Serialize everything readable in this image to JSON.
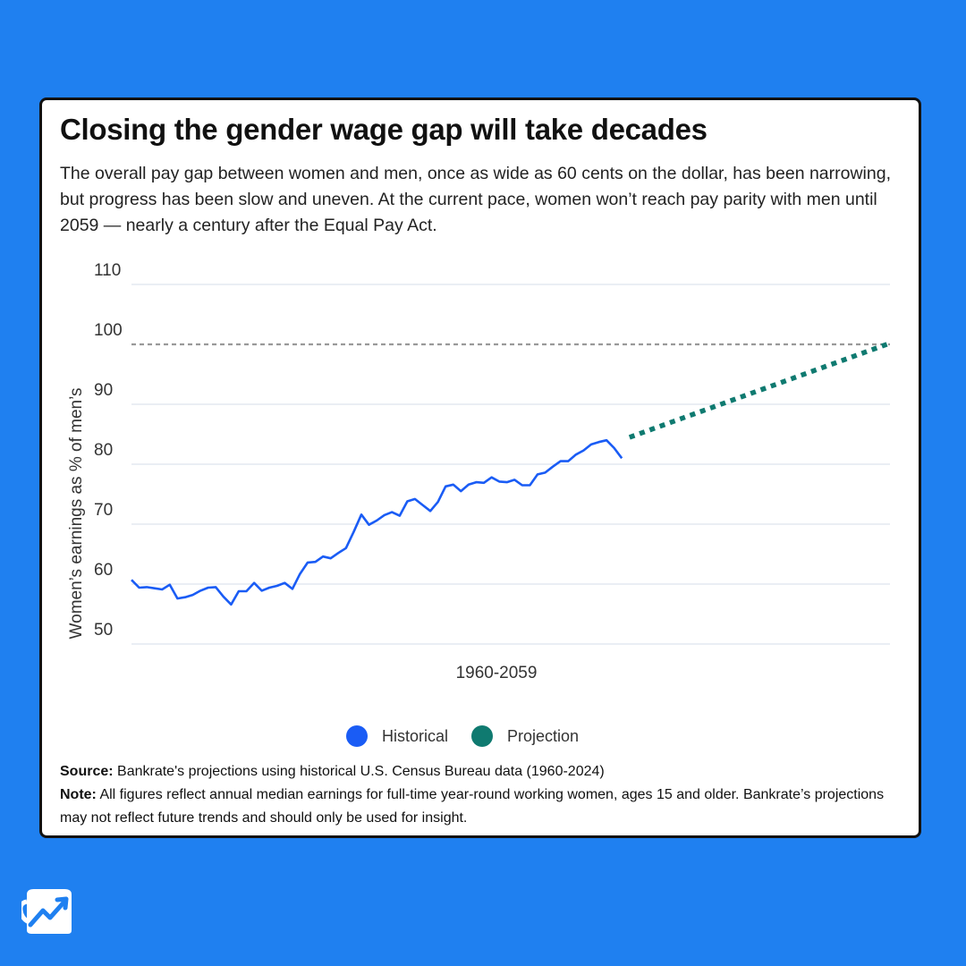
{
  "header": {
    "title": "Closing the gender wage gap will take decades",
    "subtitle": "The overall pay gap between women and men, once as wide as 60 cents on the dollar, has been narrowing, but progress has been slow and uneven. At the current pace, women won’t reach pay parity with men until 2059 — nearly a century after the Equal Pay Act."
  },
  "colors": {
    "background": "#1f80f0",
    "historical": "#1a5cf5",
    "projection": "#0f7a70",
    "parity_line": "#999999",
    "grid": "#dde3ee"
  },
  "chart_data": {
    "type": "line",
    "title": "Closing the gender wage gap will take decades",
    "xlabel": "1960-2059",
    "ylabel": "Women’s earnings as % of men’s",
    "xlim": [
      1960,
      2059
    ],
    "ylim": [
      50,
      110
    ],
    "yticks": [
      50,
      60,
      70,
      80,
      90,
      100,
      110
    ],
    "reference_line": {
      "y": 100,
      "style": "dashed"
    },
    "series": [
      {
        "name": "Historical",
        "style": "solid",
        "x": [
          1960,
          1961,
          1962,
          1963,
          1964,
          1965,
          1966,
          1967,
          1968,
          1969,
          1970,
          1971,
          1972,
          1973,
          1974,
          1975,
          1976,
          1977,
          1978,
          1979,
          1980,
          1981,
          1982,
          1983,
          1984,
          1985,
          1986,
          1987,
          1988,
          1989,
          1990,
          1991,
          1992,
          1993,
          1994,
          1995,
          1996,
          1997,
          1998,
          1999,
          2000,
          2001,
          2002,
          2003,
          2004,
          2005,
          2006,
          2007,
          2008,
          2009,
          2010,
          2011,
          2012,
          2013,
          2014,
          2015,
          2016,
          2017,
          2018,
          2019,
          2020,
          2021,
          2022,
          2023,
          2024
        ],
        "values": [
          60.7,
          59.4,
          59.5,
          59.3,
          59.1,
          59.9,
          57.6,
          57.8,
          58.2,
          58.9,
          59.4,
          59.5,
          57.9,
          56.6,
          58.8,
          58.8,
          60.2,
          58.9,
          59.4,
          59.7,
          60.2,
          59.2,
          61.7,
          63.6,
          63.7,
          64.6,
          64.3,
          65.2,
          66.0,
          68.7,
          71.6,
          69.9,
          70.6,
          71.5,
          72.0,
          71.4,
          73.8,
          74.2,
          73.2,
          72.2,
          73.7,
          76.3,
          76.6,
          75.5,
          76.6,
          77.0,
          76.9,
          77.8,
          77.1,
          77.0,
          77.4,
          76.5,
          76.5,
          78.3,
          78.6,
          79.6,
          80.5,
          80.5,
          81.6,
          82.3,
          83.3,
          83.7,
          84.0,
          82.7,
          81.0
        ]
      },
      {
        "name": "Projection",
        "style": "dotted",
        "x": [
          2025,
          2059
        ],
        "values": [
          84.5,
          100.2
        ]
      }
    ],
    "legend": [
      {
        "label": "Historical",
        "color": "#1a5cf5"
      },
      {
        "label": "Projection",
        "color": "#0f7a70"
      }
    ]
  },
  "footer": {
    "source_label": "Source:",
    "source_text": " Bankrate's projections using historical U.S. Census Bureau data (1960-2024)",
    "note_label": "Note:",
    "note_text": " All figures reflect annual median earnings for full-time year-round working women, ages 15 and older. Bankrate’s projections may not reflect future trends and should only be used for insight."
  }
}
